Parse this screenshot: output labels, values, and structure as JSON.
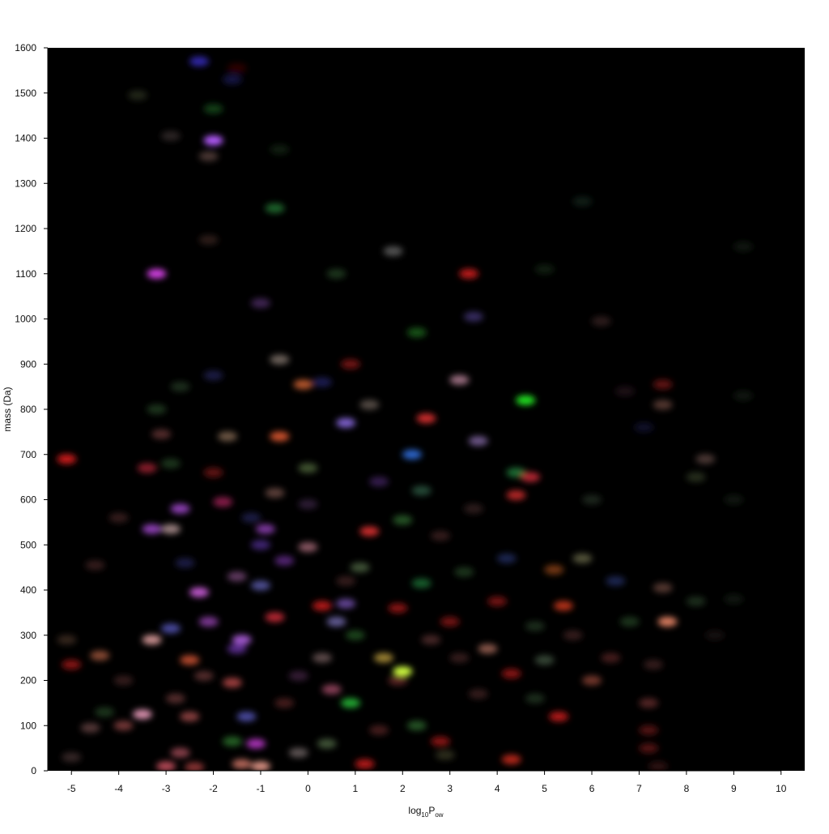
{
  "chart_data": {
    "type": "heatmap",
    "title": "",
    "xlabel_main": "log",
    "xlabel_sub1": "10",
    "xlabel_mid": "P",
    "xlabel_sub2": "ow",
    "ylabel": "mass (Da)",
    "xlim": [
      -5.5,
      10.5
    ],
    "ylim": [
      0,
      1600
    ],
    "xticks": [
      -5,
      -4,
      -3,
      -2,
      -1,
      0,
      1,
      2,
      3,
      4,
      5,
      6,
      7,
      8,
      9,
      10
    ],
    "yticks": [
      0,
      100,
      200,
      300,
      400,
      500,
      600,
      700,
      800,
      900,
      1000,
      1100,
      1200,
      1300,
      1400,
      1500,
      1600
    ],
    "background": "#000000",
    "grid": false,
    "points": [
      {
        "x": -2.3,
        "y": 1570,
        "color": "#3b2fd0",
        "i": 0.8
      },
      {
        "x": -1.5,
        "y": 1555,
        "color": "#5a0a0a",
        "i": 0.5
      },
      {
        "x": -3.6,
        "y": 1495,
        "color": "#404a30",
        "i": 0.5
      },
      {
        "x": -2.0,
        "y": 1465,
        "color": "#1f6a2a",
        "i": 0.6
      },
      {
        "x": -2.0,
        "y": 1395,
        "color": "#b55cff",
        "i": 1.0
      },
      {
        "x": -2.9,
        "y": 1405,
        "color": "#4a3a3a",
        "i": 0.6
      },
      {
        "x": -2.1,
        "y": 1360,
        "color": "#7a5a55",
        "i": 0.6
      },
      {
        "x": -0.7,
        "y": 1245,
        "color": "#2a8a3a",
        "i": 0.7
      },
      {
        "x": -2.1,
        "y": 1175,
        "color": "#5a3a30",
        "i": 0.5
      },
      {
        "x": 1.8,
        "y": 1150,
        "color": "#8a8a8a",
        "i": 0.6
      },
      {
        "x": -3.2,
        "y": 1100,
        "color": "#d040e0",
        "i": 1.0
      },
      {
        "x": 3.4,
        "y": 1100,
        "color": "#d02020",
        "i": 0.9
      },
      {
        "x": -1.0,
        "y": 1035,
        "color": "#6a3a8a",
        "i": 0.6
      },
      {
        "x": 3.5,
        "y": 1005,
        "color": "#5a4aa0",
        "i": 0.6
      },
      {
        "x": 6.2,
        "y": 995,
        "color": "#5a3a3a",
        "i": 0.5
      },
      {
        "x": 2.3,
        "y": 970,
        "color": "#2a8a2a",
        "i": 0.6
      },
      {
        "x": -0.6,
        "y": 910,
        "color": "#9a8a80",
        "i": 0.7
      },
      {
        "x": 0.9,
        "y": 900,
        "color": "#a02020",
        "i": 0.7
      },
      {
        "x": -0.1,
        "y": 855,
        "color": "#e06a3a",
        "i": 0.8
      },
      {
        "x": 3.2,
        "y": 865,
        "color": "#c08aa0",
        "i": 0.8
      },
      {
        "x": 4.6,
        "y": 820,
        "color": "#20e020",
        "i": 1.0
      },
      {
        "x": 7.5,
        "y": 855,
        "color": "#a02020",
        "i": 0.6
      },
      {
        "x": 7.5,
        "y": 810,
        "color": "#8a5a50",
        "i": 0.6
      },
      {
        "x": 1.3,
        "y": 810,
        "color": "#8a7a70",
        "i": 0.6
      },
      {
        "x": 2.5,
        "y": 780,
        "color": "#e03030",
        "i": 0.9
      },
      {
        "x": 0.8,
        "y": 770,
        "color": "#8a6ae0",
        "i": 0.9
      },
      {
        "x": -1.7,
        "y": 740,
        "color": "#9a7a60",
        "i": 0.7
      },
      {
        "x": -0.6,
        "y": 740,
        "color": "#e05a30",
        "i": 0.9
      },
      {
        "x": -3.1,
        "y": 745,
        "color": "#8a4a4a",
        "i": 0.6
      },
      {
        "x": 3.6,
        "y": 730,
        "color": "#9a7ac0",
        "i": 0.7
      },
      {
        "x": 2.2,
        "y": 700,
        "color": "#3070e0",
        "i": 0.9
      },
      {
        "x": -5.1,
        "y": 690,
        "color": "#e02020",
        "i": 0.9
      },
      {
        "x": -3.4,
        "y": 670,
        "color": "#c02a3a",
        "i": 0.7
      },
      {
        "x": -2.0,
        "y": 660,
        "color": "#a02020",
        "i": 0.6
      },
      {
        "x": 0.0,
        "y": 670,
        "color": "#6a8a50",
        "i": 0.6
      },
      {
        "x": 4.4,
        "y": 660,
        "color": "#2a9a4a",
        "i": 0.7
      },
      {
        "x": 4.7,
        "y": 650,
        "color": "#e03040",
        "i": 0.8
      },
      {
        "x": 8.4,
        "y": 690,
        "color": "#7a5a55",
        "i": 0.6
      },
      {
        "x": 8.2,
        "y": 650,
        "color": "#4a5a3a",
        "i": 0.5
      },
      {
        "x": 4.4,
        "y": 610,
        "color": "#e03030",
        "i": 0.8
      },
      {
        "x": -0.7,
        "y": 615,
        "color": "#9a6a60",
        "i": 0.6
      },
      {
        "x": -1.8,
        "y": 595,
        "color": "#c02a6a",
        "i": 0.7
      },
      {
        "x": -2.7,
        "y": 580,
        "color": "#b050e0",
        "i": 0.8
      },
      {
        "x": 2.4,
        "y": 620,
        "color": "#3a7a5a",
        "i": 0.6
      },
      {
        "x": 6.0,
        "y": 600,
        "color": "#3a4a3a",
        "i": 0.5
      },
      {
        "x": -3.3,
        "y": 535,
        "color": "#b050e0",
        "i": 0.8
      },
      {
        "x": -2.9,
        "y": 535,
        "color": "#c0a0a0",
        "i": 0.8
      },
      {
        "x": -0.9,
        "y": 535,
        "color": "#b050e0",
        "i": 0.7
      },
      {
        "x": 1.3,
        "y": 530,
        "color": "#e03030",
        "i": 0.9
      },
      {
        "x": 2.0,
        "y": 555,
        "color": "#3a8a3a",
        "i": 0.6
      },
      {
        "x": 0.0,
        "y": 495,
        "color": "#c07a8a",
        "i": 0.7
      },
      {
        "x": -1.0,
        "y": 500,
        "color": "#6a3ac0",
        "i": 0.6
      },
      {
        "x": 5.8,
        "y": 470,
        "color": "#8a8a60",
        "i": 0.6
      },
      {
        "x": -0.5,
        "y": 465,
        "color": "#8a3ac0",
        "i": 0.6
      },
      {
        "x": 1.1,
        "y": 450,
        "color": "#6a8a5a",
        "i": 0.6
      },
      {
        "x": 5.2,
        "y": 445,
        "color": "#c05a20",
        "i": 0.6
      },
      {
        "x": -4.5,
        "y": 455,
        "color": "#6a3a3a",
        "i": 0.5
      },
      {
        "x": -2.3,
        "y": 395,
        "color": "#d060e0",
        "i": 0.9
      },
      {
        "x": -1.5,
        "y": 430,
        "color": "#a060a0",
        "i": 0.6
      },
      {
        "x": -1.0,
        "y": 410,
        "color": "#7070d0",
        "i": 0.7
      },
      {
        "x": 2.4,
        "y": 415,
        "color": "#2a9a4a",
        "i": 0.6
      },
      {
        "x": 7.5,
        "y": 405,
        "color": "#8a5a50",
        "i": 0.6
      },
      {
        "x": 0.3,
        "y": 365,
        "color": "#e02020",
        "i": 0.8
      },
      {
        "x": -0.7,
        "y": 340,
        "color": "#e03040",
        "i": 0.8
      },
      {
        "x": 0.8,
        "y": 370,
        "color": "#8a60d0",
        "i": 0.7
      },
      {
        "x": 1.9,
        "y": 360,
        "color": "#c02020",
        "i": 0.7
      },
      {
        "x": 5.4,
        "y": 365,
        "color": "#e04020",
        "i": 0.8
      },
      {
        "x": 4.0,
        "y": 375,
        "color": "#c02020",
        "i": 0.6
      },
      {
        "x": 7.6,
        "y": 330,
        "color": "#f08a6a",
        "i": 0.9
      },
      {
        "x": 8.2,
        "y": 375,
        "color": "#3a5a3a",
        "i": 0.5
      },
      {
        "x": -3.3,
        "y": 290,
        "color": "#e0a0a0",
        "i": 0.9
      },
      {
        "x": -2.1,
        "y": 330,
        "color": "#b050d0",
        "i": 0.7
      },
      {
        "x": -1.4,
        "y": 290,
        "color": "#b060e0",
        "i": 0.9
      },
      {
        "x": -2.9,
        "y": 315,
        "color": "#6a6ae0",
        "i": 0.7
      },
      {
        "x": 0.6,
        "y": 330,
        "color": "#8a80d0",
        "i": 0.7
      },
      {
        "x": 3.0,
        "y": 330,
        "color": "#c02020",
        "i": 0.6
      },
      {
        "x": 3.8,
        "y": 270,
        "color": "#c07a6a",
        "i": 0.7
      },
      {
        "x": -5.1,
        "y": 290,
        "color": "#6a4a3a",
        "i": 0.5
      },
      {
        "x": -4.4,
        "y": 255,
        "color": "#c06a4a",
        "i": 0.7
      },
      {
        "x": -2.5,
        "y": 245,
        "color": "#e05a3a",
        "i": 0.8
      },
      {
        "x": -1.5,
        "y": 270,
        "color": "#7a3ac0",
        "i": 0.7
      },
      {
        "x": 0.3,
        "y": 250,
        "color": "#9a7a7a",
        "i": 0.6
      },
      {
        "x": 1.6,
        "y": 250,
        "color": "#c0a040",
        "i": 0.8
      },
      {
        "x": 2.0,
        "y": 220,
        "color": "#d0ff40",
        "i": 1.0
      },
      {
        "x": 3.2,
        "y": 250,
        "color": "#6a3a3a",
        "i": 0.5
      },
      {
        "x": 5.0,
        "y": 245,
        "color": "#6a8a6a",
        "i": 0.5
      },
      {
        "x": -5.0,
        "y": 235,
        "color": "#c02020",
        "i": 0.7
      },
      {
        "x": -1.6,
        "y": 195,
        "color": "#e05a5a",
        "i": 0.7
      },
      {
        "x": 0.5,
        "y": 180,
        "color": "#c05a7a",
        "i": 0.7
      },
      {
        "x": 1.9,
        "y": 200,
        "color": "#9a3a3a",
        "i": 0.6
      },
      {
        "x": 4.3,
        "y": 215,
        "color": "#c02020",
        "i": 0.7
      },
      {
        "x": 6.0,
        "y": 200,
        "color": "#c05a4a",
        "i": 0.6
      },
      {
        "x": 7.3,
        "y": 235,
        "color": "#6a3a3a",
        "i": 0.5
      },
      {
        "x": 0.9,
        "y": 150,
        "color": "#2ad040",
        "i": 0.8
      },
      {
        "x": -2.8,
        "y": 160,
        "color": "#8a4a4a",
        "i": 0.6
      },
      {
        "x": 7.2,
        "y": 150,
        "color": "#8a3a3a",
        "i": 0.6
      },
      {
        "x": 5.3,
        "y": 120,
        "color": "#e02020",
        "i": 0.8
      },
      {
        "x": -3.5,
        "y": 125,
        "color": "#f0a0c0",
        "i": 0.9
      },
      {
        "x": -2.5,
        "y": 120,
        "color": "#c05a5a",
        "i": 0.7
      },
      {
        "x": -1.3,
        "y": 120,
        "color": "#6a6ae0",
        "i": 0.7
      },
      {
        "x": 2.3,
        "y": 100,
        "color": "#3a8a3a",
        "i": 0.6
      },
      {
        "x": -4.6,
        "y": 95,
        "color": "#8a5a5a",
        "i": 0.6
      },
      {
        "x": -3.9,
        "y": 100,
        "color": "#c05a5a",
        "i": 0.6
      },
      {
        "x": -1.1,
        "y": 60,
        "color": "#d040e0",
        "i": 0.8
      },
      {
        "x": -1.6,
        "y": 65,
        "color": "#3aa03a",
        "i": 0.6
      },
      {
        "x": 0.4,
        "y": 60,
        "color": "#6a8a5a",
        "i": 0.6
      },
      {
        "x": 2.8,
        "y": 65,
        "color": "#c02020",
        "i": 0.7
      },
      {
        "x": 7.2,
        "y": 90,
        "color": "#8a2020",
        "i": 0.6
      },
      {
        "x": 7.2,
        "y": 50,
        "color": "#8a2020",
        "i": 0.6
      },
      {
        "x": -5.0,
        "y": 30,
        "color": "#6a4a4a",
        "i": 0.5
      },
      {
        "x": -2.7,
        "y": 40,
        "color": "#c05a6a",
        "i": 0.7
      },
      {
        "x": -1.0,
        "y": 10,
        "color": "#f0a090",
        "i": 0.9
      },
      {
        "x": -1.4,
        "y": 15,
        "color": "#e08070",
        "i": 0.8
      },
      {
        "x": -3.0,
        "y": 10,
        "color": "#e05a6a",
        "i": 0.8
      },
      {
        "x": -2.4,
        "y": 8,
        "color": "#c04a4a",
        "i": 0.7
      },
      {
        "x": -0.2,
        "y": 40,
        "color": "#9a8a8a",
        "i": 0.6
      },
      {
        "x": 1.2,
        "y": 15,
        "color": "#e02020",
        "i": 0.8
      },
      {
        "x": 4.3,
        "y": 25,
        "color": "#e03020",
        "i": 0.8
      },
      {
        "x": 2.9,
        "y": 35,
        "color": "#5a5a3a",
        "i": 0.5
      },
      {
        "x": 7.4,
        "y": 10,
        "color": "#5a2020",
        "i": 0.5
      },
      {
        "x": 0.0,
        "y": 590,
        "color": "#5a3a6a",
        "i": 0.5
      },
      {
        "x": 1.5,
        "y": 640,
        "color": "#6a3a9a",
        "i": 0.5
      },
      {
        "x": 3.5,
        "y": 580,
        "color": "#5a3a3a",
        "i": 0.5
      },
      {
        "x": -1.2,
        "y": 560,
        "color": "#3a3a8a",
        "i": 0.5
      },
      {
        "x": 2.8,
        "y": 520,
        "color": "#6a3a3a",
        "i": 0.5
      },
      {
        "x": 4.2,
        "y": 470,
        "color": "#3a4aa0",
        "i": 0.5
      },
      {
        "x": 3.3,
        "y": 440,
        "color": "#3a6a3a",
        "i": 0.5
      },
      {
        "x": 6.5,
        "y": 420,
        "color": "#3a4aa0",
        "i": 0.5
      },
      {
        "x": 6.8,
        "y": 330,
        "color": "#3a6a3a",
        "i": 0.5
      },
      {
        "x": 5.6,
        "y": 300,
        "color": "#6a3a3a",
        "i": 0.5
      },
      {
        "x": 4.8,
        "y": 320,
        "color": "#3a5a3a",
        "i": 0.5
      },
      {
        "x": 6.4,
        "y": 250,
        "color": "#8a3a3a",
        "i": 0.5
      },
      {
        "x": -3.9,
        "y": 200,
        "color": "#6a3a3a",
        "i": 0.5
      },
      {
        "x": -4.3,
        "y": 130,
        "color": "#3a6a3a",
        "i": 0.5
      },
      {
        "x": -2.2,
        "y": 210,
        "color": "#8a4a4a",
        "i": 0.6
      },
      {
        "x": 3.6,
        "y": 170,
        "color": "#6a3a3a",
        "i": 0.5
      },
      {
        "x": 4.8,
        "y": 160,
        "color": "#3a5a3a",
        "i": 0.5
      },
      {
        "x": 1.5,
        "y": 90,
        "color": "#8a3a3a",
        "i": 0.5
      },
      {
        "x": -0.5,
        "y": 150,
        "color": "#8a3a3a",
        "i": 0.5
      },
      {
        "x": -0.2,
        "y": 210,
        "color": "#6a3a6a",
        "i": 0.5
      },
      {
        "x": 2.6,
        "y": 290,
        "color": "#8a4a4a",
        "i": 0.5
      },
      {
        "x": 1.0,
        "y": 300,
        "color": "#3a8a3a",
        "i": 0.5
      },
      {
        "x": 0.8,
        "y": 420,
        "color": "#6a3a3a",
        "i": 0.5
      },
      {
        "x": -2.6,
        "y": 460,
        "color": "#3a3a8a",
        "i": 0.5
      },
      {
        "x": -4.0,
        "y": 560,
        "color": "#6a3a3a",
        "i": 0.5
      },
      {
        "x": -2.9,
        "y": 680,
        "color": "#3a6a3a",
        "i": 0.5
      },
      {
        "x": -3.2,
        "y": 800,
        "color": "#3a6a3a",
        "i": 0.5
      },
      {
        "x": -2.7,
        "y": 850,
        "color": "#3a5a3a",
        "i": 0.5
      },
      {
        "x": -2.0,
        "y": 875,
        "color": "#3a3a8a",
        "i": 0.5
      },
      {
        "x": 0.3,
        "y": 860,
        "color": "#3a3aa0",
        "i": 0.5
      },
      {
        "x": 0.6,
        "y": 1100,
        "color": "#3a6a3a",
        "i": 0.5
      },
      {
        "x": -0.6,
        "y": 1375,
        "color": "#2a4a2a",
        "i": 0.4
      },
      {
        "x": -1.6,
        "y": 1530,
        "color": "#2a2a8a",
        "i": 0.5
      },
      {
        "x": 5.8,
        "y": 1260,
        "color": "#2a4a3a",
        "i": 0.4
      },
      {
        "x": 9.2,
        "y": 1160,
        "color": "#2a3a2a",
        "i": 0.4
      },
      {
        "x": 9.2,
        "y": 830,
        "color": "#2a3a2a",
        "i": 0.4
      },
      {
        "x": 9.0,
        "y": 600,
        "color": "#2a3a2a",
        "i": 0.4
      },
      {
        "x": 9.0,
        "y": 380,
        "color": "#2a3a2a",
        "i": 0.4
      },
      {
        "x": 8.6,
        "y": 300,
        "color": "#3a2a2a",
        "i": 0.4
      },
      {
        "x": 6.7,
        "y": 840,
        "color": "#4a2a3a",
        "i": 0.4
      },
      {
        "x": 7.1,
        "y": 760,
        "color": "#2a2a6a",
        "i": 0.4
      },
      {
        "x": 5.0,
        "y": 1110,
        "color": "#2a4a2a",
        "i": 0.4
      }
    ]
  }
}
